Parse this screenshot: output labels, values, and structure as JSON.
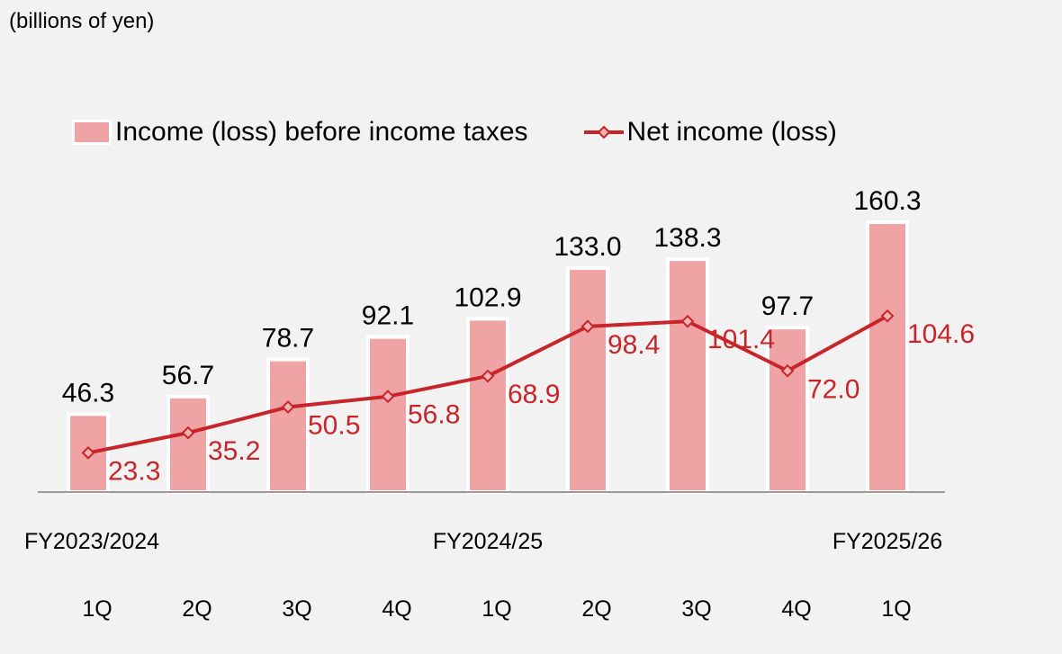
{
  "unit_label": "(billions of yen)",
  "legend": {
    "bar_label": "Income (loss) before income taxes",
    "line_label": "Net income (loss)"
  },
  "colors": {
    "bar": "#efa3a4",
    "line": "#c8252a",
    "marker_fill": "#f2b3b3",
    "axis": "#9a9a9a",
    "background": "#f2f2f2"
  },
  "chart_data": {
    "type": "bar",
    "categories": [
      "1Q",
      "2Q",
      "3Q",
      "4Q",
      "1Q",
      "2Q",
      "3Q",
      "4Q",
      "1Q"
    ],
    "fiscal_year_labels": [
      {
        "label": "FY2023/2024",
        "category_index": 0
      },
      {
        "label": "FY2024/25",
        "category_index": 4
      },
      {
        "label": "FY2025/26",
        "category_index": 8
      }
    ],
    "series": [
      {
        "name": "Income (loss) before income taxes",
        "type": "bar",
        "values": [
          46.3,
          56.7,
          78.7,
          92.1,
          102.9,
          133.0,
          138.3,
          97.7,
          160.3
        ],
        "labels": [
          "46.3",
          "56.7",
          "78.7",
          "92.1",
          "102.9",
          "133.0",
          "138.3",
          "97.7",
          "160.3"
        ]
      },
      {
        "name": "Net income (loss)",
        "type": "line",
        "values": [
          23.3,
          35.2,
          50.5,
          56.8,
          68.9,
          98.4,
          101.4,
          72.0,
          104.6
        ],
        "labels": [
          "23.3",
          "35.2",
          "50.5",
          "56.8",
          "68.9",
          "98.4",
          "101.4",
          "72.0",
          "104.6"
        ]
      }
    ],
    "ylim": [
      0,
      160.3
    ],
    "grid": false,
    "legend_position": "top"
  }
}
